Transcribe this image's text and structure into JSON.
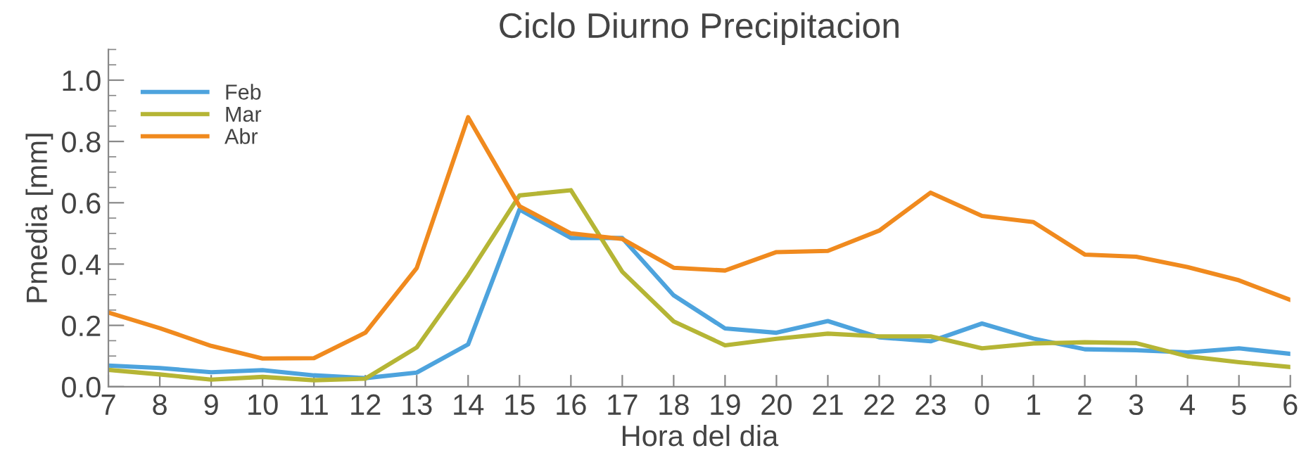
{
  "chart_data": {
    "type": "line",
    "title": "Ciclo Diurno Precipitacion",
    "xlabel": "Hora del dia",
    "ylabel": "Pmedia [mm]",
    "categories": [
      "7",
      "8",
      "9",
      "10",
      "11",
      "12",
      "13",
      "14",
      "15",
      "16",
      "17",
      "18",
      "19",
      "20",
      "21",
      "22",
      "23",
      "0",
      "1",
      "2",
      "3",
      "4",
      "5",
      "6"
    ],
    "series": [
      {
        "name": "Feb",
        "color": "#4da3dd",
        "values": [
          0.069,
          0.061,
          0.047,
          0.054,
          0.037,
          0.028,
          0.046,
          0.138,
          0.578,
          0.485,
          0.485,
          0.298,
          0.19,
          0.176,
          0.214,
          0.161,
          0.148,
          0.206,
          0.157,
          0.122,
          0.119,
          0.112,
          0.125,
          0.107
        ]
      },
      {
        "name": "Mar",
        "color": "#b5b535",
        "values": [
          0.055,
          0.04,
          0.023,
          0.032,
          0.021,
          0.026,
          0.128,
          0.364,
          0.624,
          0.641,
          0.375,
          0.213,
          0.135,
          0.156,
          0.173,
          0.164,
          0.164,
          0.125,
          0.141,
          0.145,
          0.142,
          0.099,
          0.08,
          0.064
        ]
      },
      {
        "name": "Abr",
        "color": "#f08a1e",
        "values": [
          0.242,
          0.191,
          0.133,
          0.092,
          0.093,
          0.176,
          0.387,
          0.879,
          0.589,
          0.5,
          0.482,
          0.388,
          0.379,
          0.439,
          0.443,
          0.509,
          0.633,
          0.557,
          0.537,
          0.431,
          0.424,
          0.39,
          0.347,
          0.283
        ]
      }
    ],
    "ylim": [
      0,
      1.1
    ],
    "yticks": [
      {
        "value": 0,
        "label": "0.0"
      },
      {
        "value": 0.2,
        "label": "0.2"
      },
      {
        "value": 0.4,
        "label": "0.4"
      },
      {
        "value": 0.6,
        "label": "0.6"
      },
      {
        "value": 0.8,
        "label": "0.8"
      },
      {
        "value": 1.0,
        "label": "1.0"
      }
    ],
    "legend": "top left",
    "grid": false,
    "marker": "none",
    "line_style": "solid"
  }
}
